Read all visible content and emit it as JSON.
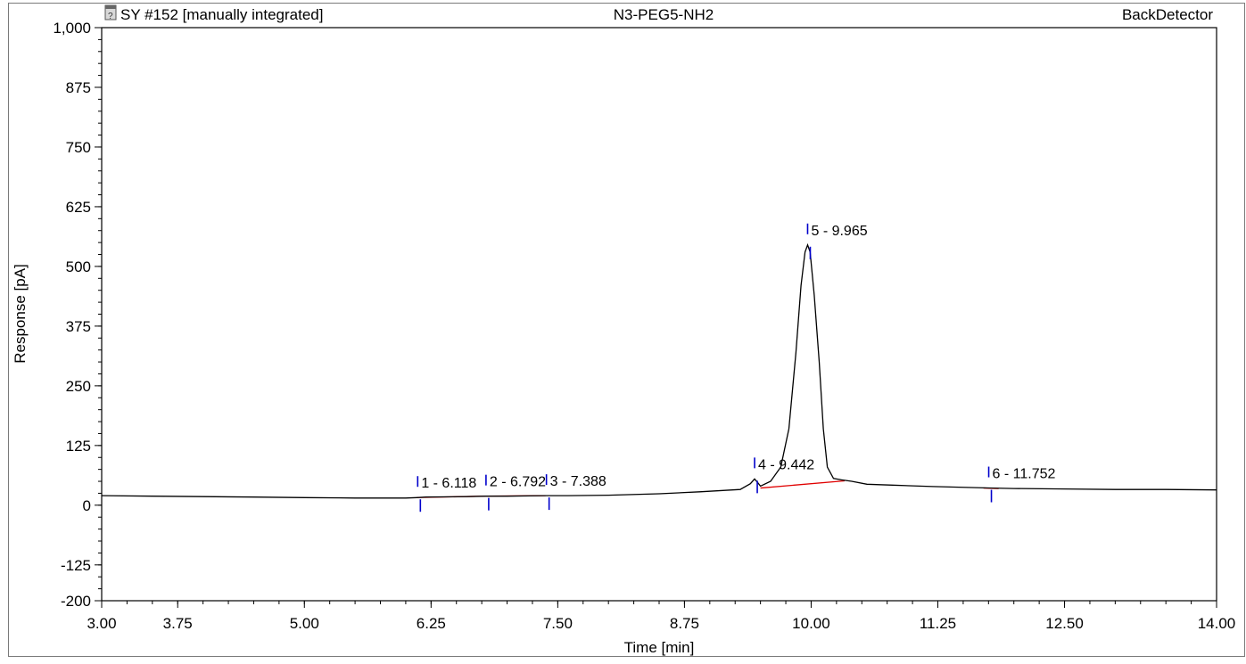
{
  "header": {
    "left_title": "SY #152 [manually integrated]",
    "center_title": "N3-PEG5-NH2",
    "right_title": "BackDetector",
    "doc_icon": "document-icon"
  },
  "chart_data": {
    "type": "line",
    "xlabel": "Time [min]",
    "ylabel": "Response [pA]",
    "xlim": [
      3.0,
      14.0
    ],
    "ylim": [
      -200,
      1000
    ],
    "x_ticks": [
      "3.00",
      "3.75",
      "5.00",
      "6.25",
      "7.50",
      "8.75",
      "10.00",
      "11.25",
      "12.50",
      "14.00"
    ],
    "y_ticks": [
      "1,000",
      "875",
      "750",
      "625",
      "500",
      "375",
      "250",
      "125",
      "0",
      "-125",
      "-200"
    ],
    "grid": false,
    "series": [
      {
        "points": [
          [
            3.0,
            20
          ],
          [
            3.5,
            19
          ],
          [
            4.0,
            18
          ],
          [
            4.5,
            17
          ],
          [
            5.0,
            16
          ],
          [
            5.5,
            15
          ],
          [
            6.0,
            15
          ],
          [
            6.11,
            16
          ],
          [
            6.2,
            17
          ],
          [
            6.6,
            18
          ],
          [
            6.79,
            19
          ],
          [
            7.0,
            19
          ],
          [
            7.38,
            20
          ],
          [
            7.6,
            20
          ],
          [
            8.0,
            21
          ],
          [
            8.5,
            24
          ],
          [
            8.9,
            28
          ],
          [
            9.3,
            33
          ],
          [
            9.4,
            45
          ],
          [
            9.442,
            55
          ],
          [
            9.47,
            48
          ],
          [
            9.5,
            40
          ],
          [
            9.6,
            50
          ],
          [
            9.7,
            80
          ],
          [
            9.78,
            160
          ],
          [
            9.85,
            320
          ],
          [
            9.9,
            460
          ],
          [
            9.94,
            530
          ],
          [
            9.965,
            545
          ],
          [
            9.99,
            530
          ],
          [
            10.03,
            440
          ],
          [
            10.08,
            300
          ],
          [
            10.12,
            160
          ],
          [
            10.16,
            80
          ],
          [
            10.22,
            56
          ],
          [
            10.3,
            53
          ],
          [
            10.4,
            50
          ],
          [
            10.55,
            44
          ],
          [
            10.8,
            42
          ],
          [
            11.2,
            39
          ],
          [
            11.752,
            36
          ],
          [
            12.0,
            35
          ],
          [
            12.5,
            34
          ],
          [
            13.0,
            33
          ],
          [
            13.5,
            33
          ],
          [
            14.0,
            32
          ]
        ]
      }
    ],
    "baselines": [
      {
        "from": [
          6.11,
          16
        ],
        "to": [
          6.79,
          19
        ]
      },
      {
        "from": [
          6.79,
          19
        ],
        "to": [
          7.38,
          20
        ]
      },
      {
        "from": [
          9.5,
          36
        ],
        "to": [
          10.33,
          51
        ]
      },
      {
        "from": [
          11.7,
          36
        ],
        "to": [
          11.85,
          35
        ]
      }
    ],
    "peaks": [
      {
        "label": "1 - 6.118",
        "rt": 6.118
      },
      {
        "label": "2 - 6.792",
        "rt": 6.792
      },
      {
        "label": "3 - 7.388",
        "rt": 7.388
      },
      {
        "label": "4 - 9.442",
        "rt": 9.442
      },
      {
        "label": "5 - 9.965",
        "rt": 9.965
      },
      {
        "label": "6 - 11.752",
        "rt": 11.752
      }
    ],
    "colors": {
      "trace": "#000000",
      "baseline": "#e00000",
      "marker": "#0000cc",
      "frame": "#000000"
    }
  }
}
